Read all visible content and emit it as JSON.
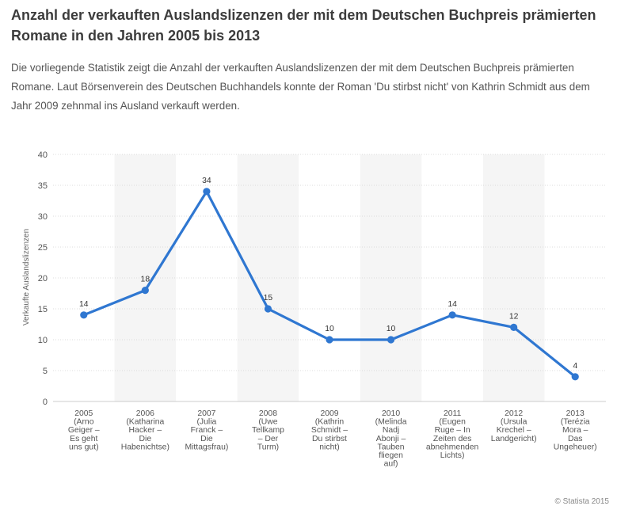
{
  "header": {
    "title": "Anzahl der verkauften Auslandslizenzen der mit dem Deutschen Buchpreis prämierten Romane in den Jahren 2005 bis 2013",
    "description": "Die vorliegende Statistik zeigt die Anzahl der verkauften Auslandslizenzen der mit dem Deutschen Buchpreis prämierten Romane. Laut Börsenverein des Deutschen Buchhandels konnte der Roman 'Du stirbst nicht' von Kathrin Schmidt aus dem Jahr 2009 zehnmal ins Ausland verkauft werden."
  },
  "footer": {
    "credit": "© Statista 2015"
  },
  "colors": {
    "line": "#2f77d1",
    "band": "#f5f5f5",
    "grid": "#dcdcdc"
  },
  "chart_data": {
    "type": "line",
    "title": "Anzahl der verkauften Auslandslizenzen der mit dem Deutschen Buchpreis prämierten Romane in den Jahren 2005 bis 2013",
    "xlabel": "",
    "ylabel": "Verkaufte Auslandslizenzen",
    "ylim": [
      0,
      40
    ],
    "yticks": [
      0,
      5,
      10,
      15,
      20,
      25,
      30,
      35,
      40
    ],
    "grid": true,
    "categories": [
      [
        "2005",
        "(Arno",
        "Geiger –",
        "Es geht",
        "uns gut)"
      ],
      [
        "2006",
        "(Katharina",
        "Hacker –",
        "Die",
        "Habenichtse)"
      ],
      [
        "2007",
        "(Julia",
        "Franck –",
        "Die",
        "Mittagsfrau)"
      ],
      [
        "2008",
        "(Uwe",
        "Tellkamp",
        "– Der",
        "Turm)"
      ],
      [
        "2009",
        "(Kathrin",
        "Schmidt –",
        "Du stirbst",
        "nicht)"
      ],
      [
        "2010",
        "(Melinda",
        "Nadj",
        "Abonji –",
        "Tauben",
        "fliegen",
        "auf)"
      ],
      [
        "2011",
        "(Eugen",
        "Ruge – In",
        "Zeiten des",
        "abnehmenden",
        "Lichts)"
      ],
      [
        "2012",
        "(Ursula",
        "Krechel –",
        "Landgericht)"
      ],
      [
        "2013",
        "(Terézia",
        "Mora –",
        "Das",
        "Ungeheuer)"
      ]
    ],
    "series": [
      {
        "name": "Verkaufte Auslandslizenzen",
        "values": [
          14,
          18,
          34,
          15,
          10,
          10,
          14,
          12,
          4
        ]
      }
    ]
  }
}
